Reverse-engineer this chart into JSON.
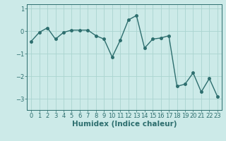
{
  "x": [
    0,
    1,
    2,
    3,
    4,
    5,
    6,
    7,
    8,
    9,
    10,
    11,
    12,
    13,
    14,
    15,
    16,
    17,
    18,
    19,
    20,
    21,
    22,
    23
  ],
  "y": [
    -0.45,
    -0.05,
    0.15,
    -0.35,
    -0.05,
    0.05,
    0.05,
    0.05,
    -0.2,
    -0.35,
    -1.15,
    -0.4,
    0.5,
    0.7,
    -0.75,
    -0.35,
    -0.3,
    -0.2,
    -2.45,
    -2.35,
    -1.85,
    -2.7,
    -2.1,
    -2.9
  ],
  "line_color": "#2d6e6e",
  "marker": "o",
  "markersize": 2.5,
  "linewidth": 1.0,
  "bg_color": "#cceae8",
  "grid_color": "#aad4d0",
  "xlabel": "Humidex (Indice chaleur)",
  "xlabel_fontsize": 7.5,
  "xlabel_bold": true,
  "ylim": [
    -3.5,
    1.2
  ],
  "xlim": [
    -0.5,
    23.5
  ],
  "yticks": [
    -3,
    -2,
    -1,
    0,
    1
  ],
  "xticks": [
    0,
    1,
    2,
    3,
    4,
    5,
    6,
    7,
    8,
    9,
    10,
    11,
    12,
    13,
    14,
    15,
    16,
    17,
    18,
    19,
    20,
    21,
    22,
    23
  ],
  "tick_fontsize": 6,
  "axis_color": "#2d6e6e"
}
